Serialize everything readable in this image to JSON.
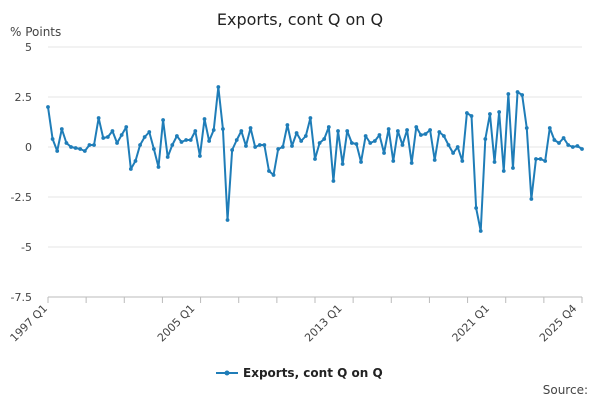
{
  "chart_data": {
    "type": "line",
    "title": "Exports, cont Q on Q",
    "unit_label": "% Points",
    "xlabel": "",
    "ylabel": "",
    "ylim": [
      -7.5,
      5
    ],
    "y_ticks": [
      "5",
      "2.5",
      "0",
      "-2.5",
      "-5",
      "-7.5"
    ],
    "y_tick_values": [
      5,
      2.5,
      0,
      -2.5,
      -5,
      -7.5
    ],
    "x_tick_labels": [
      "1997 Q1",
      "2005 Q1",
      "2013 Q1",
      "2021 Q1",
      "2025 Q4"
    ],
    "x_tick_periods": [
      "1997 Q1",
      "2005 Q1",
      "2013 Q1",
      "2021 Q1",
      "2025 Q4"
    ],
    "grid": "horizontal",
    "legend_position": "bottom",
    "source_label": "Source:",
    "colors": {
      "series": "#1f7db8",
      "grid": "#e6e6e6",
      "axis": "#bbbbbb"
    },
    "series": [
      {
        "name": "Exports, cont Q on Q",
        "start_period": "1997 Q1",
        "values": [
          2.0,
          0.4,
          -0.2,
          0.9,
          0.2,
          0.0,
          -0.05,
          -0.1,
          -0.2,
          0.1,
          0.1,
          1.45,
          0.45,
          0.5,
          0.8,
          0.2,
          0.6,
          1.0,
          -1.1,
          -0.7,
          0.1,
          0.5,
          0.75,
          -0.1,
          -1.0,
          1.35,
          -0.5,
          0.1,
          0.55,
          0.25,
          0.35,
          0.35,
          0.8,
          -0.45,
          1.4,
          0.3,
          0.85,
          3.0,
          0.9,
          -3.65,
          -0.15,
          0.35,
          0.8,
          0.05,
          0.95,
          0.0,
          0.1,
          0.1,
          -1.2,
          -1.4,
          -0.1,
          0.0,
          1.1,
          0.05,
          0.7,
          0.3,
          0.55,
          1.45,
          -0.6,
          0.2,
          0.4,
          1.0,
          -1.7,
          0.8,
          -0.85,
          0.8,
          0.2,
          0.15,
          -0.75,
          0.55,
          0.2,
          0.3,
          0.6,
          -0.3,
          0.9,
          -0.7,
          0.8,
          0.1,
          0.85,
          -0.8,
          1.0,
          0.6,
          0.65,
          0.85,
          -0.65,
          0.75,
          0.55,
          0.1,
          -0.3,
          0.0,
          -0.7,
          1.7,
          1.55,
          -3.05,
          -4.2,
          0.4,
          1.65,
          -0.75,
          1.75,
          -1.2,
          2.65,
          -1.05,
          2.75,
          2.6,
          0.95,
          -2.6,
          -0.6,
          -0.6,
          -0.7,
          0.95,
          0.35,
          0.2,
          0.45,
          0.1,
          0.0,
          0.05,
          -0.1
        ]
      }
    ]
  }
}
